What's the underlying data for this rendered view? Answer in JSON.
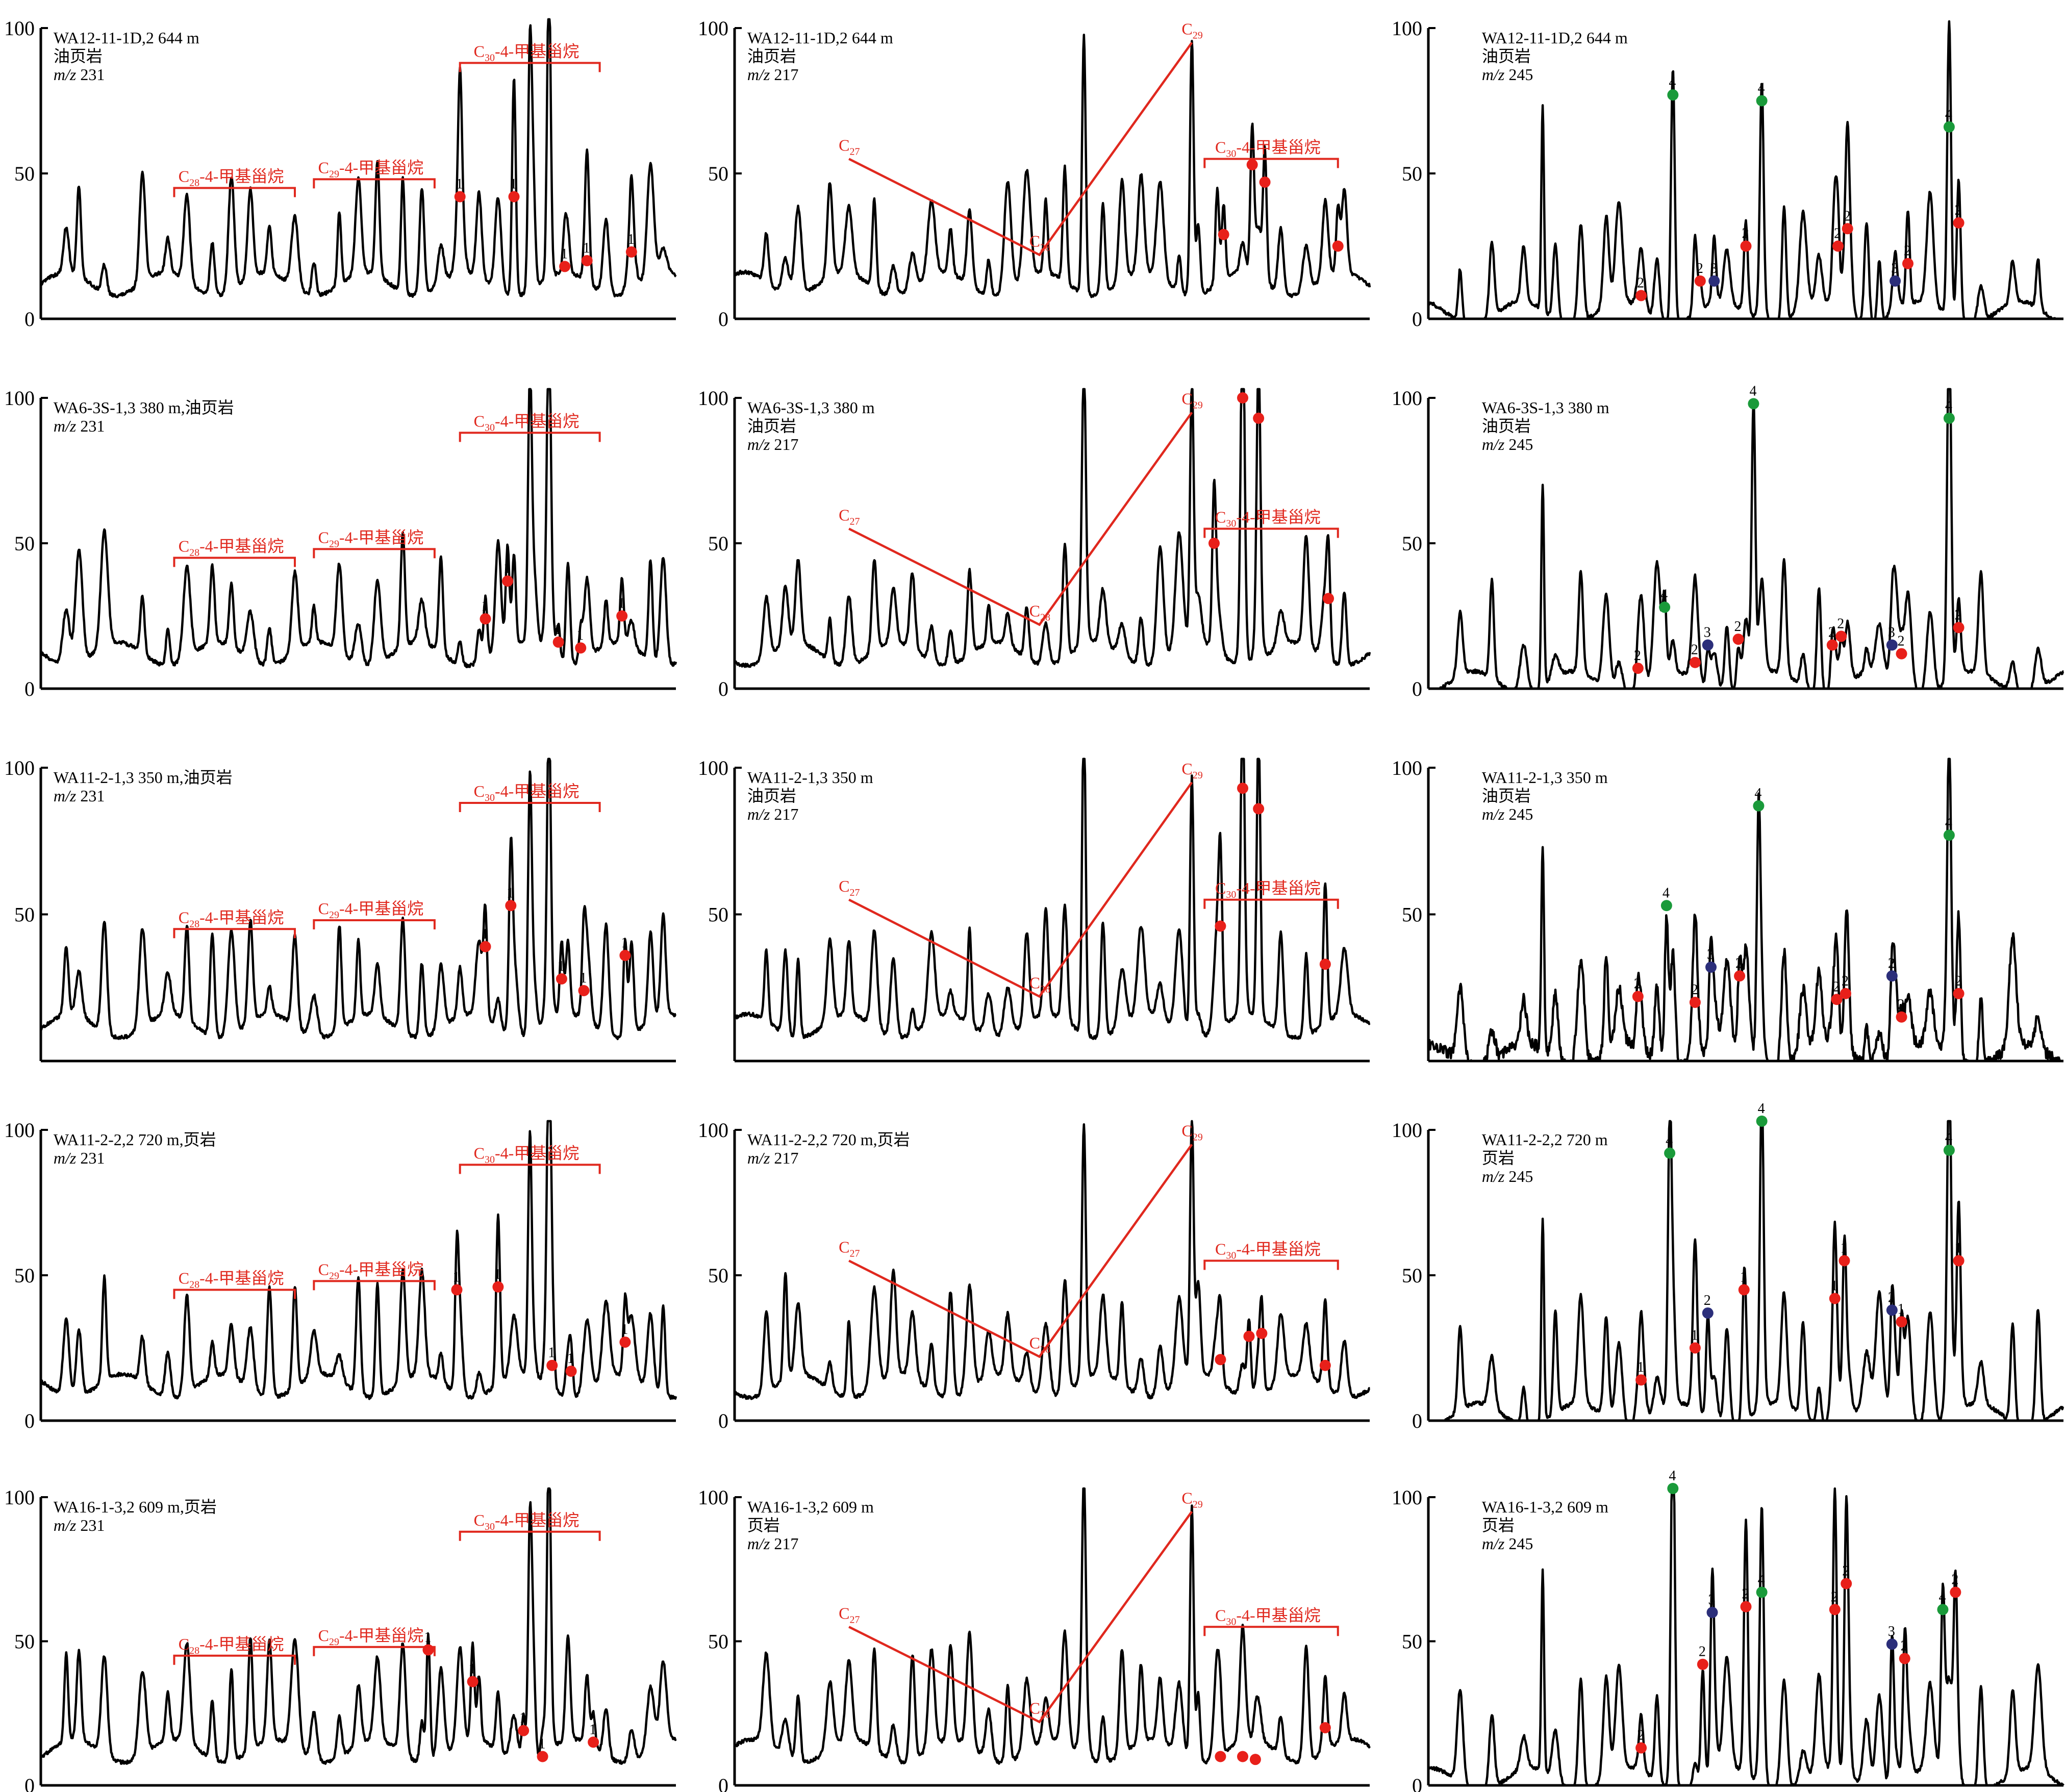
{
  "colors": {
    "trace": "#000000",
    "annotation_red": "#e0281e",
    "marker_red": "#e8201a",
    "marker_green": "#1a9a3a",
    "marker_blue": "#2b2e7a"
  },
  "chart_data": [
    {
      "type": "line",
      "sample": "WA12-11-1D,2 644 m",
      "lithology": "油页岩",
      "mz_prefix": "m/z",
      "mz": "231",
      "yticks": [
        "0",
        "50",
        "100"
      ],
      "ylim": [
        0,
        100
      ],
      "brackets": [
        {
          "label": "C28-4-甲基甾烷",
          "row_label": "C",
          "sub": "28",
          "rest": "-4-甲基甾烷"
        },
        {
          "label": "C29-4-甲基甾烷",
          "sub": "29",
          "rest": "-4-甲基甾烷"
        },
        {
          "label": "C30-4-甲基甾烷",
          "sub": "30",
          "rest": "-4-甲基甾烷"
        }
      ],
      "markers": [
        {
          "x": 0.66,
          "y": 42,
          "color": "red",
          "num": "1"
        },
        {
          "x": 0.745,
          "y": 42,
          "color": "red",
          "num": "1"
        },
        {
          "x": 0.825,
          "y": 18,
          "color": "red",
          "num": "1"
        },
        {
          "x": 0.86,
          "y": 20,
          "color": "red",
          "num": "1"
        },
        {
          "x": 0.93,
          "y": 23,
          "color": "red",
          "num": "1"
        }
      ]
    },
    {
      "type": "line",
      "sample": "WA12-11-1D,2 644 m",
      "lithology": "油页岩",
      "mz_prefix": "m/z",
      "mz": "217",
      "yticks": [
        "0",
        "50",
        "100"
      ],
      "ylim": [
        0,
        100
      ],
      "line_points": [
        {
          "label": "C27",
          "sub": "27"
        },
        {
          "label": "C28",
          "sub": "28"
        },
        {
          "label": "C29",
          "sub": "29"
        }
      ],
      "brackets": [
        {
          "label": "C30-4-甲基甾烷",
          "sub": "30",
          "rest": "-4-甲基甾烷"
        }
      ],
      "markers": [
        {
          "x": 0.77,
          "y": 29,
          "color": "red"
        },
        {
          "x": 0.815,
          "y": 53,
          "color": "red"
        },
        {
          "x": 0.835,
          "y": 47,
          "color": "red"
        },
        {
          "x": 0.95,
          "y": 25,
          "color": "red"
        }
      ]
    },
    {
      "type": "line",
      "sample": "WA12-11-1D,2 644 m",
      "lithology": "油页岩",
      "mz_prefix": "m/z",
      "mz": "245",
      "yticks": [
        "0",
        "50",
        "100"
      ],
      "ylim": [
        0,
        100
      ],
      "markers": [
        {
          "x": 0.335,
          "y": 8,
          "color": "red",
          "num": "2"
        },
        {
          "x": 0.385,
          "y": 77,
          "color": "green",
          "num": "4"
        },
        {
          "x": 0.428,
          "y": 13,
          "color": "red",
          "num": "2"
        },
        {
          "x": 0.45,
          "y": 13,
          "color": "blue",
          "num": "3"
        },
        {
          "x": 0.5,
          "y": 25,
          "color": "red",
          "num": "2"
        },
        {
          "x": 0.525,
          "y": 75,
          "color": "green",
          "num": "4"
        },
        {
          "x": 0.645,
          "y": 25,
          "color": "red",
          "num": "2"
        },
        {
          "x": 0.66,
          "y": 31,
          "color": "red",
          "num": "2"
        },
        {
          "x": 0.735,
          "y": 13,
          "color": "blue",
          "num": "3"
        },
        {
          "x": 0.755,
          "y": 19,
          "color": "red",
          "num": "2"
        },
        {
          "x": 0.82,
          "y": 66,
          "color": "green",
          "num": "4"
        },
        {
          "x": 0.835,
          "y": 33,
          "color": "red",
          "num": "2"
        }
      ]
    },
    {
      "type": "line",
      "sample": "WA6-3S-1,3 380 m,油页岩",
      "lithology": "",
      "mz_prefix": "m/z",
      "mz": "231",
      "yticks": [
        "0",
        "50",
        "100"
      ],
      "ylim": [
        0,
        100
      ],
      "brackets": [
        {
          "label": "C28-4-甲基甾烷",
          "sub": "28",
          "rest": "-4-甲基甾烷"
        },
        {
          "label": "C29-4-甲基甾烷",
          "sub": "29",
          "rest": "-4-甲基甾烷"
        },
        {
          "label": "C30-4-甲基甾烷",
          "sub": "30",
          "rest": "-4-甲基甾烷"
        }
      ],
      "markers": [
        {
          "x": 0.7,
          "y": 24,
          "color": "red",
          "num": "1"
        },
        {
          "x": 0.735,
          "y": 37,
          "color": "red",
          "num": "1"
        },
        {
          "x": 0.815,
          "y": 16,
          "color": "red",
          "num": "1"
        },
        {
          "x": 0.85,
          "y": 14,
          "color": "red",
          "num": "1"
        },
        {
          "x": 0.915,
          "y": 25,
          "color": "red",
          "num": "1"
        }
      ]
    },
    {
      "type": "line",
      "sample": "WA6-3S-1,3 380 m",
      "lithology": "油页岩",
      "mz_prefix": "m/z",
      "mz": "217",
      "yticks": [
        "0",
        "50",
        "100"
      ],
      "ylim": [
        0,
        100
      ],
      "line_points": [
        {
          "label": "C27",
          "sub": "27"
        },
        {
          "label": "C28",
          "sub": "28"
        },
        {
          "label": "C29",
          "sub": "29"
        }
      ],
      "brackets": [
        {
          "label": "C30-4-甲基甾烷",
          "sub": "30",
          "rest": "-4-甲基甾烷"
        }
      ],
      "markers": [
        {
          "x": 0.755,
          "y": 50,
          "color": "red"
        },
        {
          "x": 0.8,
          "y": 100,
          "color": "red"
        },
        {
          "x": 0.825,
          "y": 93,
          "color": "red"
        },
        {
          "x": 0.935,
          "y": 31,
          "color": "red"
        }
      ]
    },
    {
      "type": "line",
      "sample": "WA6-3S-1,3 380 m",
      "lithology": "油页岩",
      "mz_prefix": "m/z",
      "mz": "245",
      "yticks": [
        "0",
        "50",
        "100"
      ],
      "ylim": [
        0,
        100
      ],
      "markers": [
        {
          "x": 0.33,
          "y": 7,
          "color": "red",
          "num": "2"
        },
        {
          "x": 0.372,
          "y": 28,
          "color": "green",
          "num": "4"
        },
        {
          "x": 0.42,
          "y": 9,
          "color": "red",
          "num": "2"
        },
        {
          "x": 0.44,
          "y": 15,
          "color": "blue",
          "num": "3"
        },
        {
          "x": 0.488,
          "y": 17,
          "color": "red",
          "num": "2"
        },
        {
          "x": 0.512,
          "y": 98,
          "color": "green",
          "num": "4"
        },
        {
          "x": 0.636,
          "y": 15,
          "color": "red",
          "num": "2"
        },
        {
          "x": 0.65,
          "y": 18,
          "color": "red",
          "num": "2"
        },
        {
          "x": 0.73,
          "y": 15,
          "color": "blue",
          "num": "3"
        },
        {
          "x": 0.745,
          "y": 12,
          "color": "red",
          "num": "2"
        },
        {
          "x": 0.82,
          "y": 93,
          "color": "green",
          "num": "4"
        },
        {
          "x": 0.835,
          "y": 21,
          "color": "red",
          "num": "2"
        }
      ]
    },
    {
      "type": "line",
      "sample": "WA11-2-1,3 350 m,油页岩",
      "lithology": "",
      "mz_prefix": "m/z",
      "mz": "231",
      "yticks": [
        "",
        "50",
        "100"
      ],
      "ylim": [
        0,
        100
      ],
      "brackets": [
        {
          "label": "C28-4-甲基甾烷",
          "sub": "28",
          "rest": "-4-甲基甾烷"
        },
        {
          "label": "C29-4-甲基甾烷",
          "sub": "29",
          "rest": "-4-甲基甾烷"
        },
        {
          "label": "C30-4-甲基甾烷",
          "sub": "30",
          "rest": "-4-甲基甾烷"
        }
      ],
      "markers": [
        {
          "x": 0.7,
          "y": 39,
          "color": "red",
          "num": "1"
        },
        {
          "x": 0.74,
          "y": 53,
          "color": "red",
          "num": "1"
        },
        {
          "x": 0.82,
          "y": 28,
          "color": "red",
          "num": "1"
        },
        {
          "x": 0.855,
          "y": 24,
          "color": "red",
          "num": "1"
        },
        {
          "x": 0.92,
          "y": 36,
          "color": "red",
          "num": "1"
        }
      ]
    },
    {
      "type": "line",
      "sample": "WA11-2-1,3 350 m",
      "lithology": "油页岩",
      "mz_prefix": "m/z",
      "mz": "217",
      "yticks": [
        "",
        "50",
        "100"
      ],
      "ylim": [
        0,
        100
      ],
      "line_points": [
        {
          "label": "C27",
          "sub": "27"
        },
        {
          "label": "C28",
          "sub": "28"
        },
        {
          "label": "C29",
          "sub": "29"
        }
      ],
      "brackets": [
        {
          "label": "C30-4-甲基甾烷",
          "sub": "30",
          "rest": "-4-甲基甾烷"
        }
      ],
      "markers": [
        {
          "x": 0.765,
          "y": 46,
          "color": "red"
        },
        {
          "x": 0.8,
          "y": 93,
          "color": "red"
        },
        {
          "x": 0.825,
          "y": 86,
          "color": "red"
        },
        {
          "x": 0.93,
          "y": 33,
          "color": "red"
        }
      ]
    },
    {
      "type": "line",
      "sample": "WA11-2-1,3 350 m",
      "lithology": "油页岩",
      "mz_prefix": "m/z",
      "mz": "245",
      "yticks": [
        "",
        "50",
        "100"
      ],
      "ylim": [
        0,
        100
      ],
      "markers": [
        {
          "x": 0.33,
          "y": 22,
          "color": "red",
          "num": "2"
        },
        {
          "x": 0.375,
          "y": 53,
          "color": "green",
          "num": "4"
        },
        {
          "x": 0.42,
          "y": 20,
          "color": "red",
          "num": "2"
        },
        {
          "x": 0.445,
          "y": 32,
          "color": "blue",
          "num": "3"
        },
        {
          "x": 0.49,
          "y": 29,
          "color": "red",
          "num": "2"
        },
        {
          "x": 0.52,
          "y": 87,
          "color": "green",
          "num": "4"
        },
        {
          "x": 0.643,
          "y": 21,
          "color": "red",
          "num": "2"
        },
        {
          "x": 0.657,
          "y": 23,
          "color": "red",
          "num": "2"
        },
        {
          "x": 0.73,
          "y": 29,
          "color": "blue",
          "num": "2"
        },
        {
          "x": 0.745,
          "y": 15,
          "color": "red",
          "num": "2"
        },
        {
          "x": 0.82,
          "y": 77,
          "color": "green",
          "num": "4"
        },
        {
          "x": 0.835,
          "y": 23,
          "color": "red",
          "num": "2"
        }
      ]
    },
    {
      "type": "line",
      "sample": "WA11-2-2,2 720 m,页岩",
      "lithology": "",
      "mz_prefix": "m/z",
      "mz": "231",
      "yticks": [
        "0",
        "50",
        "100"
      ],
      "ylim": [
        0,
        100
      ],
      "brackets": [
        {
          "label": "C28-4-甲基甾烷",
          "sub": "28",
          "rest": "-4-甲基甾烷"
        },
        {
          "label": "C29-4-甲基甾烷",
          "sub": "29",
          "rest": "-4-甲基甾烷"
        },
        {
          "label": "C30-4-甲基甾烷",
          "sub": "30",
          "rest": "-4-甲基甾烷"
        }
      ],
      "markers": [
        {
          "x": 0.655,
          "y": 45,
          "color": "red",
          "num": "1"
        },
        {
          "x": 0.72,
          "y": 46,
          "color": "red",
          "num": "1"
        },
        {
          "x": 0.805,
          "y": 19,
          "color": "red",
          "num": "1"
        },
        {
          "x": 0.835,
          "y": 17,
          "color": "red",
          "num": "1"
        },
        {
          "x": 0.92,
          "y": 27,
          "color": "red",
          "num": "1"
        }
      ]
    },
    {
      "type": "line",
      "sample": "WA11-2-2,2 720 m,页岩",
      "lithology": "",
      "mz_prefix": "m/z",
      "mz": "217",
      "yticks": [
        "0",
        "50",
        "100"
      ],
      "ylim": [
        0,
        100
      ],
      "line_points": [
        {
          "label": "C27",
          "sub": "27"
        },
        {
          "label": "C28",
          "sub": "28"
        },
        {
          "label": "C29",
          "sub": "29"
        }
      ],
      "brackets": [
        {
          "label": "C30-4-甲基甾烷",
          "sub": "30",
          "rest": "-4-甲基甾烷"
        }
      ],
      "markers": [
        {
          "x": 0.765,
          "y": 21,
          "color": "red"
        },
        {
          "x": 0.81,
          "y": 29,
          "color": "red"
        },
        {
          "x": 0.83,
          "y": 30,
          "color": "red"
        },
        {
          "x": 0.93,
          "y": 19,
          "color": "red"
        }
      ]
    },
    {
      "type": "line",
      "sample": "WA11-2-2,2 720 m",
      "lithology": "页岩",
      "mz_prefix": "m/z",
      "mz": "245",
      "yticks": [
        "0",
        "50",
        "100"
      ],
      "ylim": [
        0,
        100
      ],
      "markers": [
        {
          "x": 0.335,
          "y": 14,
          "color": "red",
          "num": "1"
        },
        {
          "x": 0.38,
          "y": 92,
          "color": "green",
          "num": "4"
        },
        {
          "x": 0.42,
          "y": 25,
          "color": "red",
          "num": "1"
        },
        {
          "x": 0.44,
          "y": 37,
          "color": "blue",
          "num": "2"
        },
        {
          "x": 0.497,
          "y": 45,
          "color": "red",
          "num": "1"
        },
        {
          "x": 0.525,
          "y": 103,
          "color": "green",
          "num": "4"
        },
        {
          "x": 0.64,
          "y": 42,
          "color": "red",
          "num": "1"
        },
        {
          "x": 0.655,
          "y": 55,
          "color": "red",
          "num": "1"
        },
        {
          "x": 0.73,
          "y": 38,
          "color": "blue",
          "num": "2"
        },
        {
          "x": 0.745,
          "y": 34,
          "color": "red",
          "num": "1"
        },
        {
          "x": 0.82,
          "y": 93,
          "color": "green",
          "num": "4"
        },
        {
          "x": 0.835,
          "y": 55,
          "color": "red",
          "num": "1"
        }
      ]
    },
    {
      "type": "line",
      "sample": "WA16-1-3,2 609 m,页岩",
      "lithology": "",
      "mz_prefix": "m/z",
      "mz": "231",
      "yticks": [
        "0",
        "50",
        "100"
      ],
      "ylim": [
        0,
        100
      ],
      "brackets": [
        {
          "label": "C28-4-甲基甾烷",
          "sub": "28",
          "rest": "-4-甲基甾烷"
        },
        {
          "label": "C29-4-甲基甾烷",
          "sub": "29",
          "rest": "-4-甲基甾烷"
        },
        {
          "label": "C30-4-甲基甾烷",
          "sub": "30",
          "rest": "-4-甲基甾烷"
        }
      ],
      "markers": [
        {
          "x": 0.61,
          "y": 47,
          "color": "red",
          "num": "1"
        },
        {
          "x": 0.68,
          "y": 36,
          "color": "red",
          "num": "1"
        },
        {
          "x": 0.76,
          "y": 19,
          "color": "red",
          "num": "1"
        },
        {
          "x": 0.79,
          "y": 10,
          "color": "red",
          "num": "1"
        },
        {
          "x": 0.87,
          "y": 15,
          "color": "red",
          "num": "1"
        }
      ]
    },
    {
      "type": "line",
      "sample": "WA16-1-3,2 609 m",
      "lithology": "页岩",
      "mz_prefix": "m/z",
      "mz": "217",
      "yticks": [
        "0",
        "50",
        "100"
      ],
      "ylim": [
        0,
        100
      ],
      "line_points": [
        {
          "label": "C27",
          "sub": "27"
        },
        {
          "label": "C28",
          "sub": "28"
        },
        {
          "label": "C29",
          "sub": "29"
        }
      ],
      "brackets": [
        {
          "label": "C30-4-甲基甾烷",
          "sub": "30",
          "rest": "-4-甲基甾烷"
        }
      ],
      "markers": [
        {
          "x": 0.765,
          "y": 10,
          "color": "red"
        },
        {
          "x": 0.8,
          "y": 10,
          "color": "red"
        },
        {
          "x": 0.82,
          "y": 9,
          "color": "red"
        },
        {
          "x": 0.93,
          "y": 20,
          "color": "red"
        }
      ]
    },
    {
      "type": "line",
      "sample": "WA16-1-3,2 609 m",
      "lithology": "页岩",
      "mz_prefix": "m/z",
      "mz": "245",
      "yticks": [
        "0",
        "50",
        "100"
      ],
      "ylim": [
        0,
        100
      ],
      "markers": [
        {
          "x": 0.335,
          "y": 13,
          "color": "red",
          "num": "2"
        },
        {
          "x": 0.385,
          "y": 103,
          "color": "green",
          "num": "4"
        },
        {
          "x": 0.432,
          "y": 42,
          "color": "red",
          "num": "2"
        },
        {
          "x": 0.447,
          "y": 60,
          "color": "blue",
          "num": "3"
        },
        {
          "x": 0.5,
          "y": 62,
          "color": "red",
          "num": "2"
        },
        {
          "x": 0.525,
          "y": 67,
          "color": "green",
          "num": "4"
        },
        {
          "x": 0.64,
          "y": 61,
          "color": "red",
          "num": "2"
        },
        {
          "x": 0.658,
          "y": 70,
          "color": "red",
          "num": "2"
        },
        {
          "x": 0.73,
          "y": 49,
          "color": "blue",
          "num": "3"
        },
        {
          "x": 0.75,
          "y": 44,
          "color": "red",
          "num": "2"
        },
        {
          "x": 0.81,
          "y": 61,
          "color": "green",
          "num": "4"
        },
        {
          "x": 0.83,
          "y": 67,
          "color": "red",
          "num": "2"
        }
      ]
    }
  ]
}
